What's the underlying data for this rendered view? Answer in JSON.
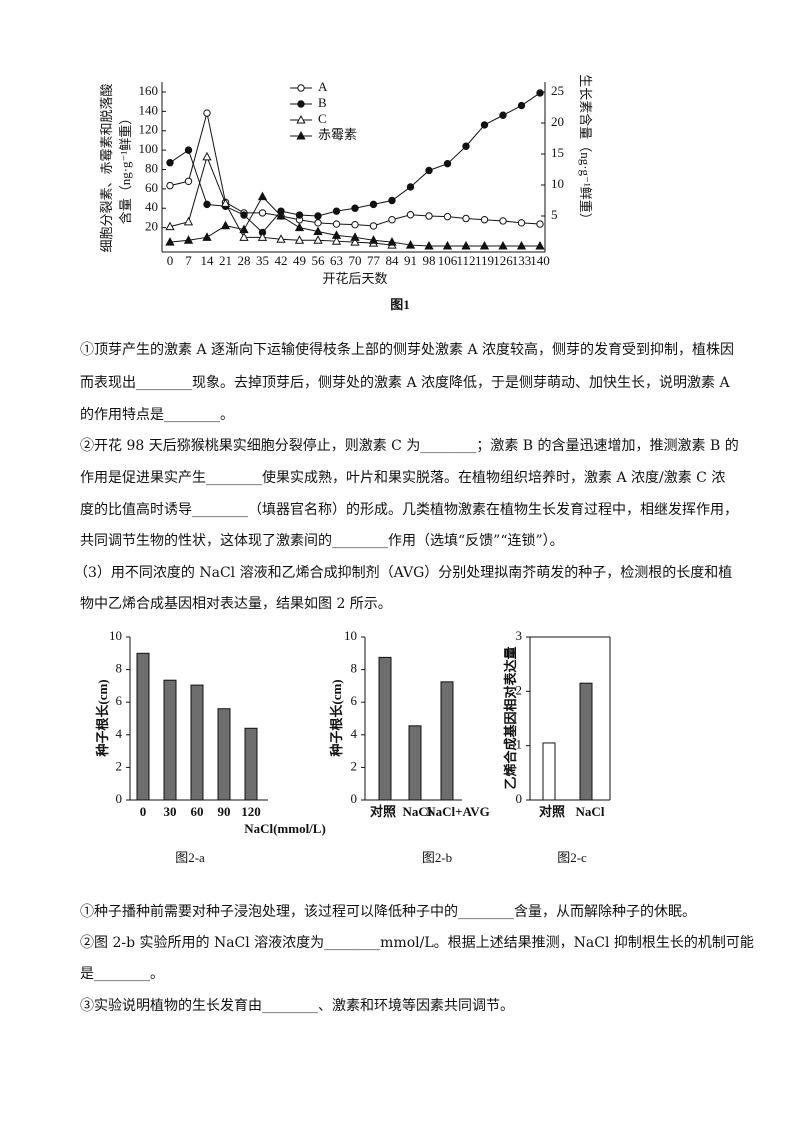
{
  "figure1": {
    "type": "line",
    "categories": [
      0,
      7,
      14,
      21,
      28,
      35,
      42,
      49,
      56,
      63,
      70,
      77,
      84,
      91,
      98,
      106,
      112,
      119,
      126,
      133,
      140
    ],
    "ylabel": [
      "细胞分裂素、赤霉素和脱落酸",
      "含量（ng·g⁻¹鲜重）"
    ],
    "y2label": "生长素含量（ng·g⁻¹鲜重）",
    "xlabel": "开花后天数",
    "caption": "图1",
    "ylim": [
      0,
      160
    ],
    "yticks": [
      20,
      40,
      60,
      80,
      100,
      120,
      140,
      160
    ],
    "y2lim": [
      0,
      25
    ],
    "y2ticks": [
      5,
      10,
      15,
      20,
      25
    ],
    "series": [
      {
        "name": "A",
        "marker": "open-circle",
        "axis": "y2",
        "values": [
          9.9,
          10.6,
          21.6,
          7.2,
          5.5,
          5.5,
          5.0,
          4.4,
          3.9,
          3.7,
          3.6,
          3.4,
          4.4,
          5.2,
          5.0,
          4.9,
          4.6,
          4.4,
          4.2,
          3.9,
          3.7
        ]
      },
      {
        "name": "B",
        "marker": "filled-circle",
        "values": [
          87,
          100,
          44,
          42,
          33,
          15,
          37,
          33,
          32,
          37,
          40,
          44,
          48,
          62,
          79,
          86,
          104,
          126,
          136,
          146,
          159
        ]
      },
      {
        "name": "C",
        "marker": "open-triangle",
        "values": [
          21,
          26,
          93,
          45,
          10,
          10,
          8,
          7,
          7,
          6,
          5,
          4,
          2,
          null,
          null,
          null,
          null,
          null,
          null,
          null,
          null
        ]
      },
      {
        "name": "赤霉素",
        "marker": "filled-triangle",
        "values": [
          5,
          7,
          10,
          22,
          18,
          52,
          32,
          20,
          16,
          12,
          10,
          7,
          5,
          2,
          1,
          1,
          1,
          1,
          1,
          1,
          1
        ]
      }
    ]
  },
  "text1": {
    "lines": [
      "①顶芽产生的激素 A 逐渐向下运输使得枝条上部的侧芽处激素 A 浓度较高，侧芽的发育受到抑制，植株因",
      "而表现出________现象。去掉顶芽后，侧芽处的激素 A 浓度降低，于是侧芽萌动、加快生长，说明激素 A",
      "的作用特点是________。",
      "②开花 98 天后猕猴桃果实细胞分裂停止，则激素 C 为________；激素 B 的含量迅速增加，推测激素 B 的",
      "作用是促进果实产生________使果实成熟，叶片和果实脱落。在植物组织培养时，激素 A 浓度/激素 C 浓",
      "度的比值高时诱导________（填器官名称）的形成。几类植物激素在植物生长发育过程中，相继发挥作用，",
      "共同调节生物的性状，这体现了激素间的________作用（选填“反馈”“连锁”）。",
      "（3）用不同浓度的 NaCl 溶液和乙烯合成抑制剂（AVG）分别处理拟南芥萌发的种子，检测根的长度和植",
      "物中乙烯合成基因相对表达量，结果如图 2 所示。"
    ]
  },
  "figure2": [
    {
      "type": "bar",
      "categories": [
        "0",
        "30",
        "60",
        "90",
        "120"
      ],
      "values": [
        9.0,
        7.35,
        7.05,
        5.6,
        4.4
      ],
      "colors": [
        "#6e6e6e",
        "#6e6e6e",
        "#6e6e6e",
        "#6e6e6e",
        "#6e6e6e"
      ],
      "ylabel": "种子根长(cm)",
      "xlabel": "NaCl(mmol/L)",
      "caption": "图2-a",
      "ylim": [
        0,
        10
      ],
      "yticks": [
        0,
        2,
        4,
        6,
        8,
        10
      ]
    },
    {
      "type": "bar",
      "categories": [
        "对照",
        "NaCl",
        "NaCl+AVG"
      ],
      "values": [
        8.75,
        4.55,
        7.25
      ],
      "colors": [
        "#6e6e6e",
        "#6e6e6e",
        "#6e6e6e"
      ],
      "ylabel": "种子根长(cm)",
      "caption": "图2-b",
      "ylim": [
        0,
        10
      ],
      "yticks": [
        0,
        2,
        4,
        6,
        8,
        10
      ]
    },
    {
      "type": "bar",
      "categories": [
        "对照",
        "NaCl"
      ],
      "values": [
        1.05,
        2.15
      ],
      "colors": [
        "#ffffff",
        "#6e6e6e"
      ],
      "ylabel": "乙烯合成基因相对表达量",
      "caption": "图2-c",
      "ylim": [
        0,
        3
      ],
      "yticks": [
        0,
        1,
        2,
        3
      ]
    }
  ],
  "text2": {
    "lines": [
      "①种子播种前需要对种子浸泡处理，该过程可以降低种子中的________含量，从而解除种子的休眠。",
      "②图 2-b 实验所用的 NaCl 溶液浓度为________mmol/L。根据上述结果推测，NaCl 抑制根生长的机制可能",
      "是________。",
      "③实验说明植物的生长发育由________、激素和环境等因素共同调节。"
    ]
  }
}
